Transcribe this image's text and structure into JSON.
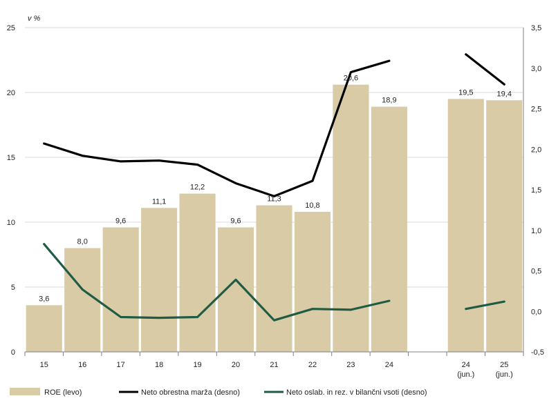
{
  "chart_data": {
    "type": "bar",
    "unit_label": "v %",
    "categories": [
      {
        "id": "c15",
        "line1": "15",
        "line2": ""
      },
      {
        "id": "c16",
        "line1": "16",
        "line2": ""
      },
      {
        "id": "c17",
        "line1": "17",
        "line2": ""
      },
      {
        "id": "c18",
        "line1": "18",
        "line2": ""
      },
      {
        "id": "c19",
        "line1": "19",
        "line2": ""
      },
      {
        "id": "c20",
        "line1": "20",
        "line2": ""
      },
      {
        "id": "c21",
        "line1": "21",
        "line2": ""
      },
      {
        "id": "c22",
        "line1": "22",
        "line2": ""
      },
      {
        "id": "c23",
        "line1": "23",
        "line2": ""
      },
      {
        "id": "c24",
        "line1": "24",
        "line2": ""
      },
      {
        "id": "gap",
        "line1": "",
        "line2": ""
      },
      {
        "id": "c24j",
        "line1": "24",
        "line2": "(jun.)"
      },
      {
        "id": "c25j",
        "line1": "25",
        "line2": "(jun.)"
      }
    ],
    "series": [
      {
        "name": "ROE (levo)",
        "type": "bar",
        "axis": "left",
        "color": "#d9cba5",
        "values": [
          3.6,
          8.0,
          9.6,
          11.1,
          12.2,
          9.6,
          11.3,
          10.8,
          20.6,
          18.9,
          null,
          19.5,
          19.4
        ],
        "labels": [
          "3,6",
          "8,0",
          "9,6",
          "11,1",
          "12,2",
          "9,6",
          "11,3",
          "10,8",
          "20,6",
          "18,9",
          "",
          "19,5",
          "19,4"
        ]
      },
      {
        "name": "Neto obrestna marža (desno)",
        "type": "line",
        "axis": "right",
        "color": "#000000",
        "values": [
          2.07,
          1.92,
          1.85,
          1.86,
          1.81,
          1.58,
          1.42,
          1.61,
          2.95,
          3.09,
          null,
          3.17,
          2.8
        ]
      },
      {
        "name": "Neto oslab. in rez. v bilančni vsoti (desno)",
        "type": "line",
        "axis": "right",
        "color": "#1f5c43",
        "values": [
          0.83,
          0.27,
          -0.07,
          -0.08,
          -0.07,
          0.39,
          -0.11,
          0.03,
          0.02,
          0.13,
          null,
          0.03,
          0.12
        ]
      }
    ],
    "y_left": {
      "min": 0,
      "max": 25,
      "ticks": [
        0,
        5,
        10,
        15,
        20,
        25
      ],
      "tick_labels": [
        "0",
        "5",
        "10",
        "15",
        "20",
        "25"
      ]
    },
    "y_right": {
      "min": -0.5,
      "max": 3.5,
      "ticks": [
        -0.5,
        0,
        0.5,
        1,
        1.5,
        2,
        2.5,
        3,
        3.5
      ],
      "tick_labels": [
        "-0,5",
        "0,0",
        "0,5",
        "1,0",
        "1,5",
        "2,0",
        "2,5",
        "3,0",
        "3,5"
      ]
    },
    "grid": true,
    "legend_position": "bottom"
  }
}
